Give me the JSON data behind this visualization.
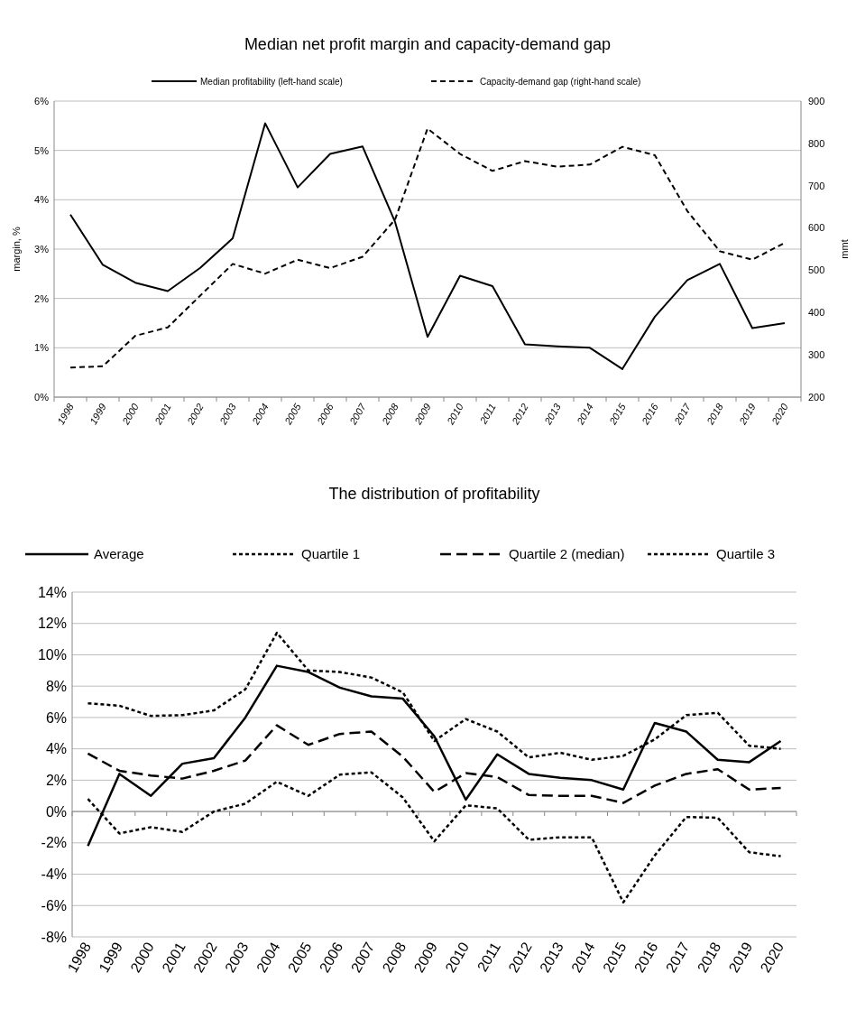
{
  "chart_data": [
    {
      "type": "line",
      "title": "Median net profit margin and capacity-demand gap",
      "ylabel": "margin, %",
      "y2label": "mmt",
      "categories": [
        "1998",
        "1999",
        "2000",
        "2001",
        "2002",
        "2003",
        "2004",
        "2005",
        "2006",
        "2007",
        "2008",
        "2009",
        "2010",
        "2011",
        "2012",
        "2013",
        "2014",
        "2015",
        "2016",
        "2017",
        "2018",
        "2019",
        "2020"
      ],
      "ylim": [
        0,
        6
      ],
      "yticks": [
        {
          "value": 0,
          "label": "0%"
        },
        {
          "value": 1,
          "label": "1%"
        },
        {
          "value": 2,
          "label": "2%"
        },
        {
          "value": 3,
          "label": "3%"
        },
        {
          "value": 4,
          "label": "4%"
        },
        {
          "value": 5,
          "label": "5%"
        },
        {
          "value": 6,
          "label": "6%"
        }
      ],
      "y2lim": [
        200,
        900
      ],
      "y2ticks": [
        200,
        300,
        400,
        500,
        600,
        700,
        800,
        900
      ],
      "grid": "y",
      "legend": "top",
      "marker": "none",
      "series": [
        {
          "name": "Median profitability (left-hand scale)",
          "color": "#000000",
          "line_style": "solid",
          "values": [
            3.7,
            2.68,
            2.32,
            2.15,
            2.62,
            3.22,
            5.55,
            4.25,
            4.93,
            5.08,
            3.55,
            1.22,
            2.46,
            2.25,
            1.07,
            1.03,
            1.0,
            0.57,
            1.63,
            2.37,
            2.7,
            1.4,
            1.5
          ]
        },
        {
          "name": "Capacity-demand gap (right-hand scale)",
          "color": "#000000",
          "line_style": "dashed",
          "axis": "y2",
          "values": [
            270,
            273,
            345,
            365,
            440,
            515,
            492,
            525,
            505,
            532,
            620,
            835,
            775,
            735,
            758,
            745,
            750,
            792,
            772,
            640,
            545,
            525,
            565
          ]
        }
      ]
    },
    {
      "type": "line",
      "title": "The distribution of profitability",
      "categories": [
        "1998",
        "1999",
        "2000",
        "2001",
        "2002",
        "2003",
        "2004",
        "2005",
        "2006",
        "2007",
        "2008",
        "2009",
        "2010",
        "2011",
        "2012",
        "2013",
        "2014",
        "2015",
        "2016",
        "2017",
        "2018",
        "2019",
        "2020"
      ],
      "ylim": [
        -8,
        14
      ],
      "yticks": [
        {
          "value": -8,
          "label": "-8%"
        },
        {
          "value": -6,
          "label": "-6%"
        },
        {
          "value": -4,
          "label": "-4%"
        },
        {
          "value": -2,
          "label": "-2%"
        },
        {
          "value": 0,
          "label": "0%"
        },
        {
          "value": 2,
          "label": "2%"
        },
        {
          "value": 4,
          "label": "4%"
        },
        {
          "value": 6,
          "label": "6%"
        },
        {
          "value": 8,
          "label": "8%"
        },
        {
          "value": 10,
          "label": "10%"
        },
        {
          "value": 12,
          "label": "12%"
        },
        {
          "value": 14,
          "label": "14%"
        }
      ],
      "grid": "y",
      "legend": "top",
      "marker": "none",
      "series": [
        {
          "name": "Average",
          "color": "#000000",
          "line_style": "solid",
          "values": [
            -2.2,
            2.4,
            1.0,
            3.05,
            3.4,
            6.0,
            9.3,
            8.9,
            7.9,
            7.35,
            7.2,
            4.8,
            0.75,
            3.65,
            2.4,
            2.15,
            2.0,
            1.4,
            5.65,
            5.1,
            3.3,
            3.15,
            4.5
          ]
        },
        {
          "name": "Quartile 1",
          "color": "#000000",
          "line_style": "dotted",
          "values": [
            0.8,
            -1.4,
            -1.0,
            -1.3,
            0.0,
            0.5,
            1.9,
            1.0,
            2.35,
            2.5,
            0.9,
            -1.9,
            0.4,
            0.2,
            -1.8,
            -1.65,
            -1.65,
            -5.8,
            -2.8,
            -0.35,
            -0.4,
            -2.6,
            -2.85
          ]
        },
        {
          "name": "Quartile 2 (median)",
          "color": "#000000",
          "line_style": "dashed",
          "values": [
            3.7,
            2.6,
            2.3,
            2.1,
            2.6,
            3.25,
            5.5,
            4.25,
            4.95,
            5.1,
            3.5,
            1.25,
            2.45,
            2.2,
            1.05,
            1.0,
            1.0,
            0.55,
            1.65,
            2.4,
            2.7,
            1.4,
            1.5
          ]
        },
        {
          "name": "Quartile 3",
          "color": "#000000",
          "line_style": "dotted",
          "values": [
            6.9,
            6.75,
            6.1,
            6.15,
            6.45,
            7.8,
            11.4,
            9.0,
            8.9,
            8.55,
            7.6,
            4.5,
            5.9,
            5.1,
            3.45,
            3.75,
            3.3,
            3.55,
            4.6,
            6.15,
            6.3,
            4.2,
            4.0
          ]
        }
      ]
    }
  ]
}
